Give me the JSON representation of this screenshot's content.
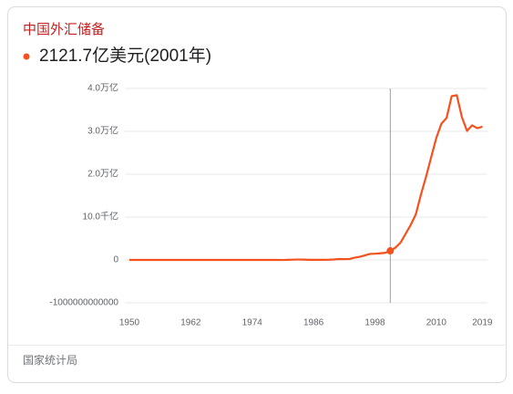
{
  "chart_data": {
    "type": "line",
    "title": "中国外汇储备",
    "highlight": {
      "x": 2001,
      "value": 212170000000,
      "label": "2121.7亿美元(2001年)"
    },
    "x": [
      1950,
      1955,
      1960,
      1965,
      1970,
      1975,
      1978,
      1979,
      1980,
      1981,
      1982,
      1983,
      1984,
      1985,
      1986,
      1987,
      1988,
      1989,
      1990,
      1991,
      1992,
      1993,
      1994,
      1995,
      1996,
      1997,
      1998,
      1999,
      2000,
      2001,
      2002,
      2003,
      2004,
      2005,
      2006,
      2007,
      2008,
      2009,
      2010,
      2011,
      2012,
      2013,
      2014,
      2015,
      2016,
      2017,
      2018,
      2019
    ],
    "values": [
      157000000,
      180000000,
      46000000,
      105000000,
      88000000,
      183000000,
      167000000,
      840000000,
      -1296000000,
      2708000000,
      6986000000,
      8901000000,
      8220000000,
      2644000000,
      2072000000,
      2923000000,
      3372000000,
      5550000000,
      11093000000,
      21712000000,
      19443000000,
      21199000000,
      51620000000,
      73597000000,
      105029000000,
      139890000000,
      144959000000,
      154675000000,
      165574000000,
      212170000000,
      286407000000,
      403251000000,
      609932000000,
      818872000000,
      1066344000000,
      1528249000000,
      1946030000000,
      2399152000000,
      2847338000000,
      3181148000000,
      3311589000000,
      3821315000000,
      3843018000000,
      3330362000000,
      3010517000000,
      3139949000000,
      3072712000000,
      3107924000000
    ],
    "color": "#f4511e",
    "xlim": [
      1950,
      2020
    ],
    "xticks": [
      1950,
      1962,
      1974,
      1986,
      1998,
      2010,
      2019
    ],
    "ylim": [
      -1000000000000,
      4000000000000
    ],
    "yticks": [
      -1000000000000,
      0,
      {
        "value": 1000000000000,
        "label": "10.0千亿"
      },
      {
        "value": 2000000000000,
        "label": "2.0万亿"
      },
      {
        "value": 3000000000000,
        "label": "3.0万亿"
      },
      {
        "value": 4000000000000,
        "label": "4.0万亿"
      }
    ],
    "grid": true,
    "source": "国家统计局"
  }
}
